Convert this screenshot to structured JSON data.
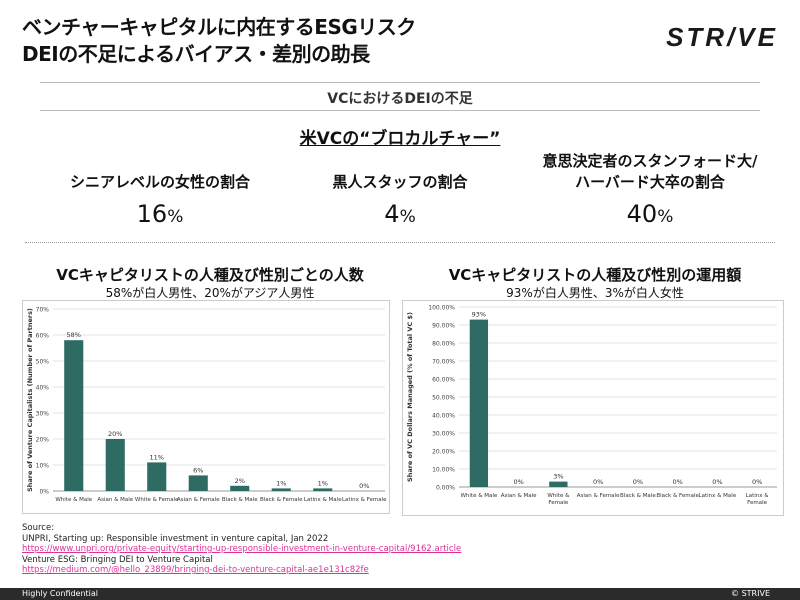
{
  "header": {
    "title_line1": "ベンチャーキャピタルに内在するESGリスク",
    "title_line2": "DEIの不足によるバイアス・差別の助長",
    "logo": "STR/VE"
  },
  "section_title": "VCにおけるDEIの不足",
  "subheading": "米VCの“ブロカルチャー”",
  "stats": [
    {
      "label": "シニアレベルの女性の割合",
      "value": "16",
      "unit": "%"
    },
    {
      "label": "黒人スタッフの割合",
      "value": "4",
      "unit": "%"
    },
    {
      "label_line1": "意思決定者のスタンフォード大/",
      "label_line2": "ハーバード大卒の割合",
      "value": "40",
      "unit": "%"
    }
  ],
  "left_chart": {
    "title": "VCキャピタリストの人種及び性別ごとの人数",
    "subtitle": "58%が白人男性、20%がアジア人男性"
  },
  "right_chart": {
    "title": "VCキャピタリストの人種及び性別の運用額",
    "subtitle": "93%が白人男性、3%が白人女性"
  },
  "chart_data": [
    {
      "type": "bar",
      "ylabel": "Share of Venture Capitalists (Number of Partners)",
      "categories": [
        "White & Male",
        "Asian & Male",
        "White & Female",
        "Asian & Female",
        "Black & Male",
        "Black & Female",
        "Latinx & Male",
        "Latinx & Female"
      ],
      "values": [
        58,
        20,
        11,
        6,
        2,
        1,
        1,
        0
      ],
      "data_labels": [
        "58%",
        "20%",
        "11%",
        "6%",
        "2%",
        "1%",
        "1%",
        "0%"
      ],
      "ylim": [
        0,
        70
      ],
      "yticks": [
        "0%",
        "10%",
        "20%",
        "30%",
        "40%",
        "50%",
        "60%",
        "70%"
      ],
      "grid": true,
      "color": "#2e6b63"
    },
    {
      "type": "bar",
      "ylabel": "Share of VC Dollars Managed (% of Total VC $)",
      "categories": [
        "White & Male",
        "Asian & Male",
        "White & Female",
        "Asian & Female",
        "Black & Male",
        "Black & Female",
        "Latinx & Male",
        "Latinx & Female"
      ],
      "values": [
        93,
        0,
        3,
        0,
        0,
        0,
        0,
        0
      ],
      "data_labels": [
        "93%",
        "0%",
        "3%",
        "0%",
        "0%",
        "0%",
        "0%",
        "0%"
      ],
      "ylim": [
        0,
        100
      ],
      "yticks": [
        "0.00%",
        "10.00%",
        "20.00%",
        "30.00%",
        "40.00%",
        "50.00%",
        "60.00%",
        "70.00%",
        "80.00%",
        "90.00%",
        "100.00%"
      ],
      "grid": true,
      "color": "#2e6b63"
    }
  ],
  "sources": {
    "label": "Source:",
    "line1": "UNPRI, Starting up: Responsible investment in venture capital, Jan 2022",
    "link1": "https://www.unpri.org/private-equity/starting-up-responsible-investment-in-venture-capital/9162.article",
    "line2": "Venture ESG: Bringing DEI to Venture Capital",
    "link2": "https://medium.com/@hello_23899/bringing-dei-to-venture-capital-ae1e131c82fe"
  },
  "footer": {
    "left": "Highly Confidential",
    "right": "© STRIVE"
  }
}
